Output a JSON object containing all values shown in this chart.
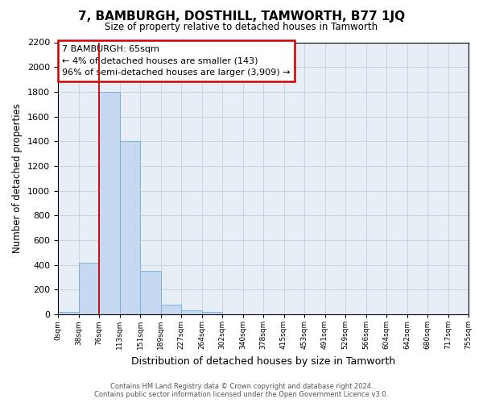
{
  "title": "7, BAMBURGH, DOSTHILL, TAMWORTH, B77 1JQ",
  "subtitle": "Size of property relative to detached houses in Tamworth",
  "xlabel": "Distribution of detached houses by size in Tamworth",
  "ylabel": "Number of detached properties",
  "bar_color": "#c5d8f0",
  "bar_edge_color": "#6baed6",
  "grid_color": "#c0cfe0",
  "background_color": "#e8eef6",
  "bin_labels": [
    "0sqm",
    "38sqm",
    "76sqm",
    "113sqm",
    "151sqm",
    "189sqm",
    "227sqm",
    "264sqm",
    "302sqm",
    "340sqm",
    "378sqm",
    "415sqm",
    "453sqm",
    "491sqm",
    "529sqm",
    "566sqm",
    "604sqm",
    "642sqm",
    "680sqm",
    "717sqm",
    "755sqm"
  ],
  "bar_heights": [
    20,
    420,
    1800,
    1400,
    350,
    80,
    30,
    20,
    0,
    0,
    0,
    0,
    0,
    0,
    0,
    0,
    0,
    0,
    0,
    0
  ],
  "ylim": [
    0,
    2200
  ],
  "yticks": [
    0,
    200,
    400,
    600,
    800,
    1000,
    1200,
    1400,
    1600,
    1800,
    2000,
    2200
  ],
  "property_line_x": 2.0,
  "annotation_title": "7 BAMBURGH: 65sqm",
  "annotation_line1": "← 4% of detached houses are smaller (143)",
  "annotation_line2": "96% of semi-detached houses are larger (3,909) →",
  "footer_line1": "Contains HM Land Registry data © Crown copyright and database right 2024.",
  "footer_line2": "Contains public sector information licensed under the Open Government Licence v3.0.",
  "n_bins": 20
}
